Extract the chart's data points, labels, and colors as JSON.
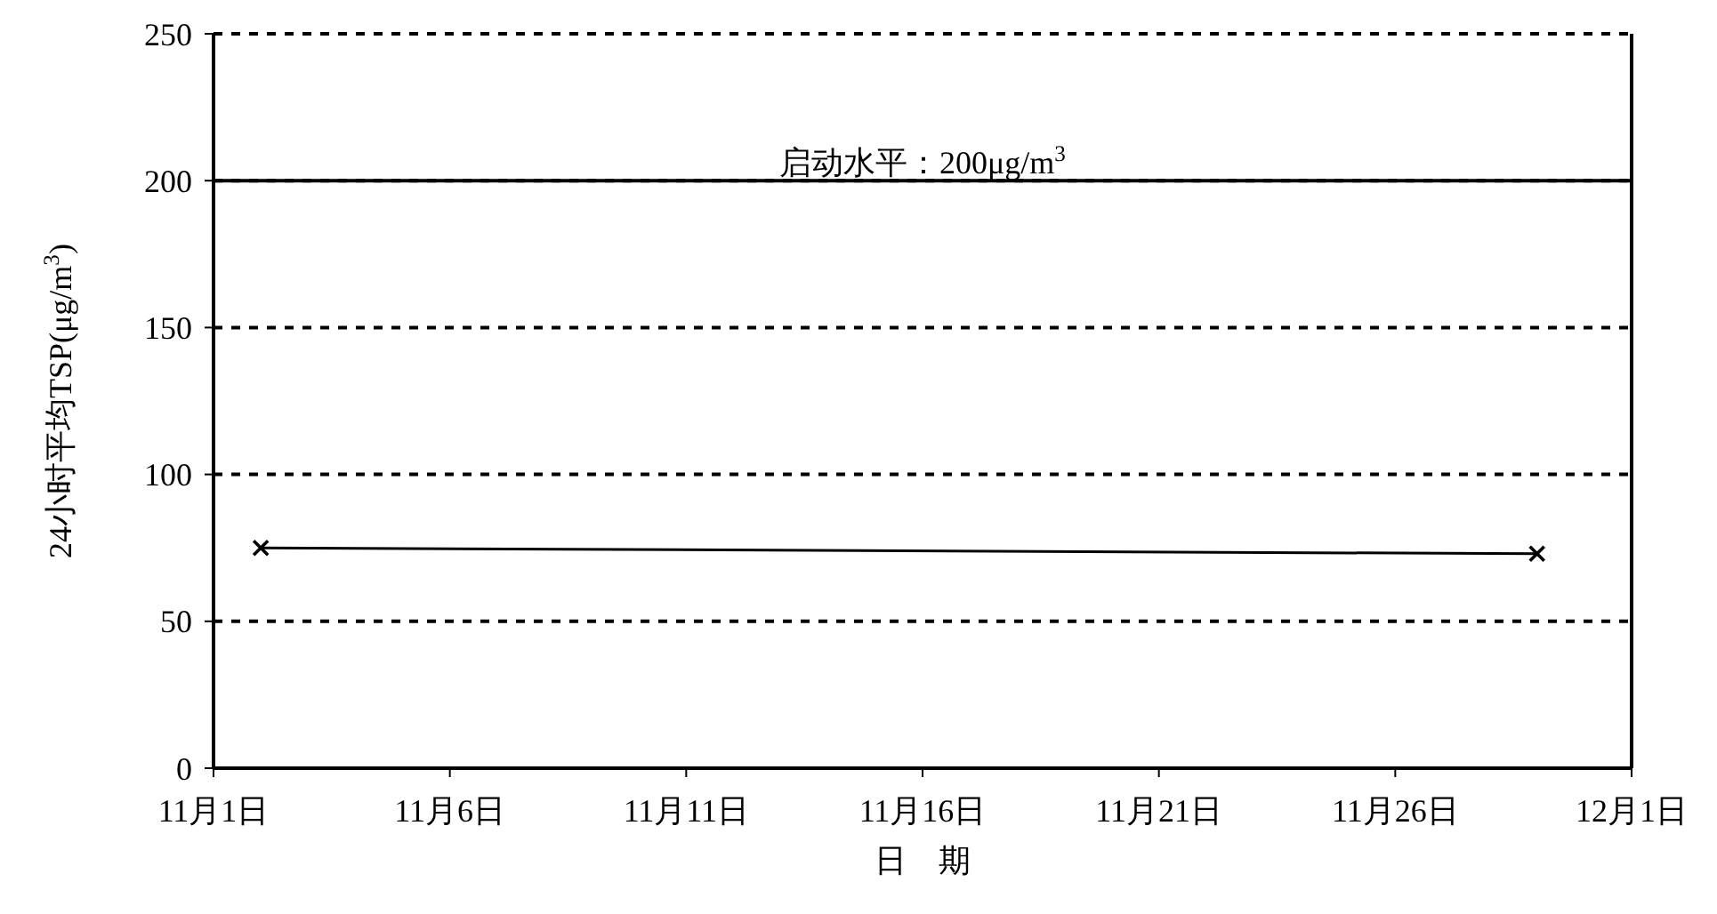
{
  "chart_data": {
    "type": "line",
    "xlabel": "日　期",
    "ylabel": "24小时平均TSP(μg/m$^{3}$)",
    "x": [
      "--11-02",
      "--11-29"
    ],
    "series": [
      {
        "color": "#000000",
        "values": [
          75,
          73
        ]
      }
    ],
    "xlim": [
      "--11-01",
      "--12-01"
    ],
    "xticks": [
      {
        "value": "--11-01",
        "label": "11月1日"
      },
      {
        "value": "--11-06",
        "label": "11月6日"
      },
      {
        "value": "--11-11",
        "label": "11月11日"
      },
      {
        "value": "--11-16",
        "label": "11月16日"
      },
      {
        "value": "--11-21",
        "label": "11月21日"
      },
      {
        "value": "--11-26",
        "label": "11月26日"
      },
      {
        "value": "--12-01",
        "label": "12月1日"
      }
    ],
    "ylim": [
      0,
      250
    ],
    "yticks": [
      0,
      50,
      100,
      150,
      200,
      250
    ],
    "grid": "y",
    "marker": "cross",
    "line_style": "solid",
    "ref_lines": [
      {
        "axis": "y",
        "value": 200,
        "label": "启动水平：200μg/m$^{3}$",
        "color": "#000000",
        "line_style": "solid"
      }
    ]
  }
}
